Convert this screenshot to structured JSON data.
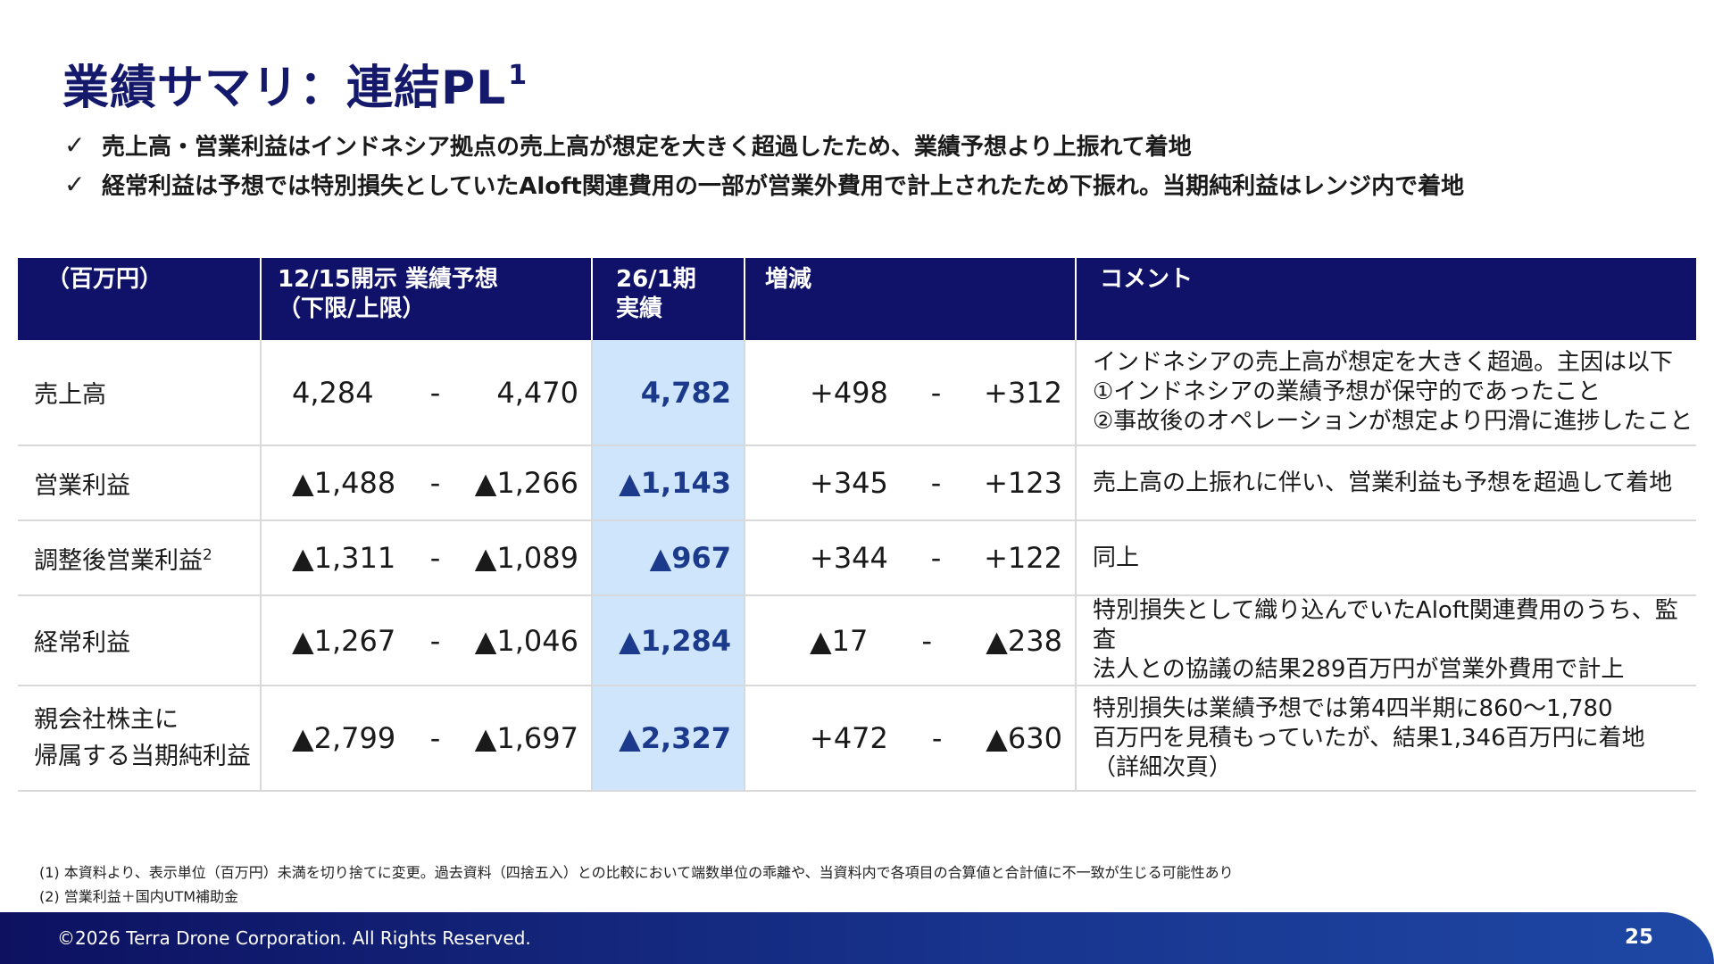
{
  "title": {
    "text": "業績サマリ：連結PL",
    "superscript": "1"
  },
  "bullets": [
    {
      "icon": "checkmark-icon",
      "text": "売上高・営業利益はインドネシア拠点の売上高が想定を大きく超過したため、業績予想より上振れて着地"
    },
    {
      "icon": "checkmark-icon",
      "text": "経常利益は予想では特別損失としていたAloft関連費用の一部が営業外費用で計上されたため下振れ。当期純利益はレンジ内で着地"
    }
  ],
  "table": {
    "headers": {
      "unit": "（百万円）",
      "forecast_line1": "12/15開示 業績予想",
      "forecast_line2": "（下限/上限）",
      "actual_line1": "26/1期",
      "actual_line2": "実績",
      "change": "増減",
      "comment": "コメント"
    },
    "rows": [
      {
        "item": "売上高",
        "item_sup": "",
        "forecast_low": "4,284",
        "forecast_high": "4,470",
        "actual": "4,782",
        "change_low": "+498",
        "change_high": "+312",
        "comment": "インドネシアの売上高が想定を大きく超過。主因は以下\n①インドネシアの業績予想が保守的であったこと\n②事故後のオペレーションが想定より円滑に進捗したこと"
      },
      {
        "item": "営業利益",
        "item_sup": "",
        "forecast_low": "▲1,488",
        "forecast_high": "▲1,266",
        "actual": "▲1,143",
        "change_low": "+345",
        "change_high": "+123",
        "comment": "売上高の上振れに伴い、営業利益も予想を超過して着地"
      },
      {
        "item": "調整後営業利益",
        "item_sup": "2",
        "forecast_low": "▲1,311",
        "forecast_high": "▲1,089",
        "actual": "▲967",
        "change_low": "+344",
        "change_high": "+122",
        "comment": "同上"
      },
      {
        "item": "経常利益",
        "item_sup": "",
        "forecast_low": "▲1,267",
        "forecast_high": "▲1,046",
        "actual": "▲1,284",
        "change_low": "▲17",
        "change_high": "▲238",
        "comment": "特別損失として織り込んでいたAloft関連費用のうち、監査\n法人との協議の結果289百万円が営業外費用で計上"
      },
      {
        "item": "親会社株主に\n帰属する当期純利益",
        "item_sup": "",
        "forecast_low": "▲2,799",
        "forecast_high": "▲1,697",
        "actual": "▲2,327",
        "change_low": "+472",
        "change_high": "▲630",
        "comment": "特別損失は業績予想では第4四半期に860～1,780\n百万円を見積もっていたが、結果1,346百万円に着地\n（詳細次頁）"
      }
    ],
    "range_separator": "-"
  },
  "footnotes": [
    "(1)  本資料より、表示単位（百万円）未満を切り捨てに変更。過去資料（四捨五入）との比較において端数単位の乖離や、当資料内で各項目の合算値と合計値に不一致が生じる可能性あり",
    "(2)  営業利益＋国内UTM補助金"
  ],
  "footer": {
    "copyright": "©2026 Terra Drone Corporation. All Rights Reserved.",
    "page_number": "25"
  },
  "colors": {
    "header_navy": "#10126a",
    "title_navy": "#15196b",
    "actual_highlight": "#cfe5fb",
    "actual_text": "#1b3a8c"
  }
}
